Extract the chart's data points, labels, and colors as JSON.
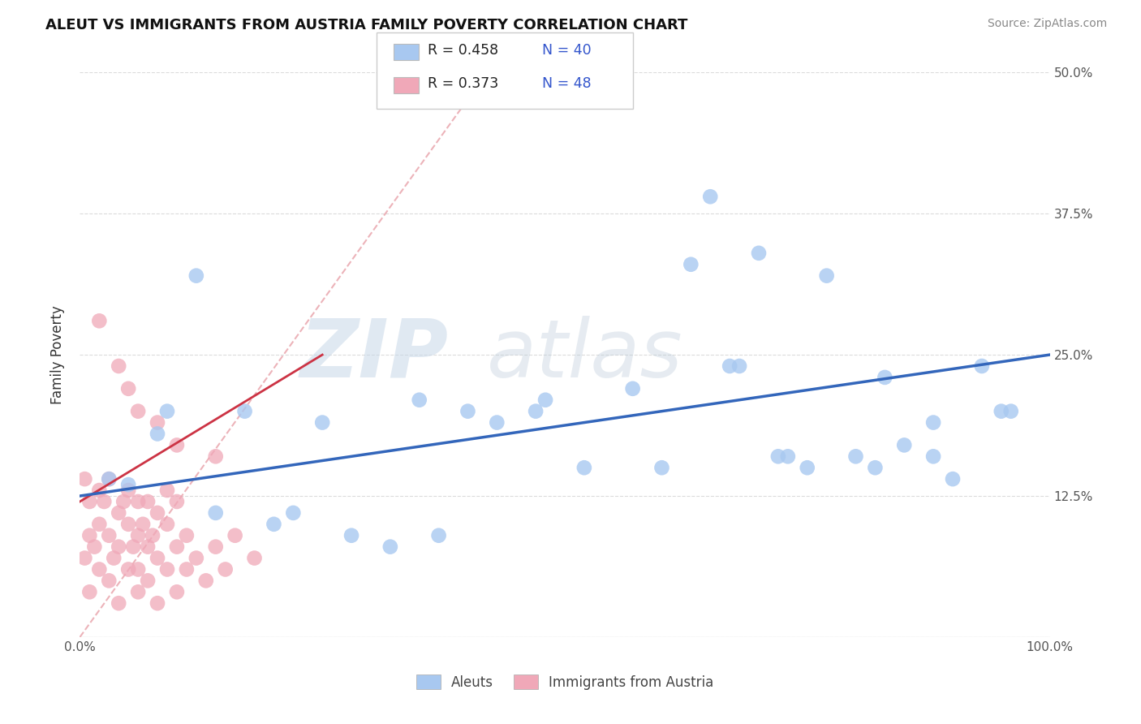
{
  "title": "ALEUT VS IMMIGRANTS FROM AUSTRIA FAMILY POVERTY CORRELATION CHART",
  "source": "Source: ZipAtlas.com",
  "ylabel": "Family Poverty",
  "legend_label1": "Aleuts",
  "legend_label2": "Immigrants from Austria",
  "color_blue": "#a8c8f0",
  "color_pink": "#f0a8b8",
  "color_blue_line": "#3366bb",
  "color_pink_line": "#cc3344",
  "color_pink_diag": "#e8a0a8",
  "xlim": [
    0,
    100
  ],
  "ylim": [
    0,
    50
  ],
  "x_ticks": [
    0,
    25,
    50,
    75,
    100
  ],
  "x_tick_labels": [
    "0.0%",
    "",
    "",
    "",
    "100.0%"
  ],
  "y_ticks": [
    0,
    12.5,
    25,
    37.5,
    50
  ],
  "y_tick_labels_right": [
    "",
    "12.5%",
    "25.0%",
    "37.5%",
    "50.0%"
  ],
  "aleuts_x": [
    5,
    9,
    12,
    17,
    20,
    22,
    28,
    32,
    37,
    40,
    43,
    47,
    52,
    57,
    63,
    65,
    68,
    70,
    72,
    75,
    77,
    80,
    82,
    85,
    88,
    90,
    93,
    95,
    3,
    8,
    14,
    25,
    35,
    48,
    60,
    67,
    73,
    83,
    88,
    96
  ],
  "aleuts_y": [
    13.5,
    20,
    32,
    20,
    10,
    11,
    9,
    8,
    9,
    20,
    19,
    20,
    15,
    22,
    33,
    39,
    24,
    34,
    16,
    15,
    32,
    16,
    15,
    17,
    16,
    14,
    24,
    20,
    14,
    18,
    11,
    19,
    21,
    21,
    15,
    24,
    16,
    23,
    19,
    20
  ],
  "austria_x": [
    0.5,
    0.5,
    1,
    1,
    1,
    1.5,
    2,
    2,
    2,
    2.5,
    3,
    3,
    3,
    3.5,
    4,
    4,
    4,
    4.5,
    5,
    5,
    5,
    5.5,
    6,
    6,
    6,
    6,
    6.5,
    7,
    7,
    7,
    7.5,
    8,
    8,
    8,
    9,
    9,
    9,
    10,
    10,
    10,
    11,
    11,
    12,
    13,
    14,
    15,
    16,
    18
  ],
  "austria_y": [
    14,
    7,
    12,
    4,
    9,
    8,
    13,
    6,
    10,
    12,
    5,
    9,
    14,
    7,
    3,
    11,
    8,
    12,
    6,
    10,
    13,
    8,
    4,
    9,
    12,
    6,
    10,
    5,
    8,
    12,
    9,
    3,
    7,
    11,
    6,
    10,
    13,
    4,
    8,
    12,
    6,
    9,
    7,
    5,
    8,
    6,
    9,
    7
  ],
  "austria_outliers_x": [
    2,
    4,
    5,
    6,
    8,
    10,
    14
  ],
  "austria_outliers_y": [
    28,
    24,
    22,
    20,
    19,
    17,
    16
  ],
  "reg_blue_x0": 0,
  "reg_blue_y0": 12.5,
  "reg_blue_x1": 100,
  "reg_blue_y1": 25.0,
  "reg_pink_x0": 0,
  "reg_pink_y0": 12.0,
  "reg_pink_x1": 25,
  "reg_pink_y1": 25.0,
  "diag_x0": 0,
  "diag_y0": 0,
  "diag_x1": 42,
  "diag_y1": 50,
  "bg_color": "#ffffff",
  "grid_color": "#cccccc",
  "watermark_color": "#dde8f0",
  "title_color": "#111111",
  "source_color": "#888888",
  "tick_color": "#555555"
}
